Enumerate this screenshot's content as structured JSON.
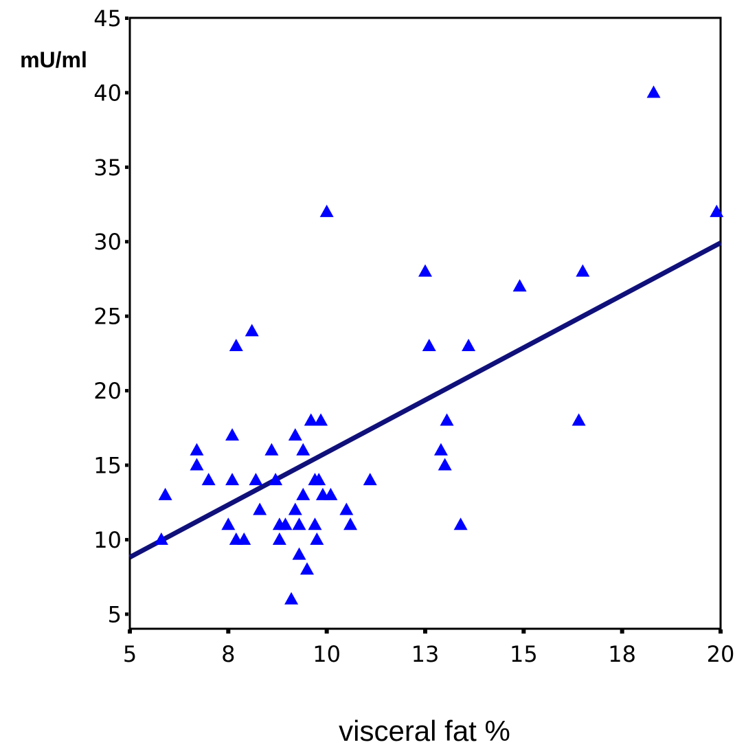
{
  "chart_data": {
    "type": "scatter",
    "title": "",
    "xlabel": "visceral fat %",
    "ylabel": "mU/ml",
    "xlim": [
      5,
      20
    ],
    "ylim": [
      4,
      45
    ],
    "x_ticks": [
      5,
      7.5,
      10,
      12.5,
      15,
      17.5,
      20
    ],
    "x_tick_labels": [
      "5",
      "8",
      "10",
      "13",
      "15",
      "18",
      "20"
    ],
    "y_ticks": [
      5,
      10,
      15,
      20,
      25,
      30,
      35,
      40,
      45
    ],
    "y_tick_labels": [
      "5",
      "10",
      "15",
      "20",
      "25",
      "30",
      "35",
      "40",
      "45"
    ],
    "grid": false,
    "marker": "triangle",
    "colors": {
      "points": "#0000ff",
      "line": "#10107a",
      "axes": "#000000"
    },
    "points": [
      {
        "x": 5.8,
        "y": 10
      },
      {
        "x": 5.9,
        "y": 13
      },
      {
        "x": 6.7,
        "y": 16
      },
      {
        "x": 6.7,
        "y": 15
      },
      {
        "x": 7.0,
        "y": 14
      },
      {
        "x": 7.5,
        "y": 11
      },
      {
        "x": 7.6,
        "y": 17
      },
      {
        "x": 7.6,
        "y": 14
      },
      {
        "x": 7.7,
        "y": 23
      },
      {
        "x": 7.7,
        "y": 10
      },
      {
        "x": 7.9,
        "y": 10
      },
      {
        "x": 8.1,
        "y": 24
      },
      {
        "x": 8.2,
        "y": 14
      },
      {
        "x": 8.3,
        "y": 12
      },
      {
        "x": 8.6,
        "y": 16
      },
      {
        "x": 8.7,
        "y": 14
      },
      {
        "x": 8.8,
        "y": 11
      },
      {
        "x": 8.8,
        "y": 10
      },
      {
        "x": 8.95,
        "y": 11
      },
      {
        "x": 9.1,
        "y": 6
      },
      {
        "x": 9.2,
        "y": 17
      },
      {
        "x": 9.2,
        "y": 12
      },
      {
        "x": 9.3,
        "y": 11
      },
      {
        "x": 9.3,
        "y": 9
      },
      {
        "x": 9.4,
        "y": 16
      },
      {
        "x": 9.4,
        "y": 13
      },
      {
        "x": 9.5,
        "y": 8
      },
      {
        "x": 9.6,
        "y": 18
      },
      {
        "x": 9.7,
        "y": 14
      },
      {
        "x": 9.7,
        "y": 11
      },
      {
        "x": 9.75,
        "y": 10
      },
      {
        "x": 9.8,
        "y": 14
      },
      {
        "x": 9.85,
        "y": 18
      },
      {
        "x": 9.9,
        "y": 13
      },
      {
        "x": 10.0,
        "y": 32
      },
      {
        "x": 10.1,
        "y": 13
      },
      {
        "x": 10.5,
        "y": 12
      },
      {
        "x": 10.6,
        "y": 11
      },
      {
        "x": 11.1,
        "y": 14
      },
      {
        "x": 12.5,
        "y": 28
      },
      {
        "x": 12.6,
        "y": 23
      },
      {
        "x": 12.9,
        "y": 16
      },
      {
        "x": 13.0,
        "y": 15
      },
      {
        "x": 13.05,
        "y": 18
      },
      {
        "x": 13.4,
        "y": 11
      },
      {
        "x": 13.6,
        "y": 23
      },
      {
        "x": 14.9,
        "y": 27
      },
      {
        "x": 16.4,
        "y": 18
      },
      {
        "x": 16.5,
        "y": 28
      },
      {
        "x": 18.3,
        "y": 40
      },
      {
        "x": 19.9,
        "y": 32
      }
    ],
    "trendline": {
      "x": [
        5,
        20
      ],
      "y": [
        8.8,
        29.9
      ]
    }
  }
}
